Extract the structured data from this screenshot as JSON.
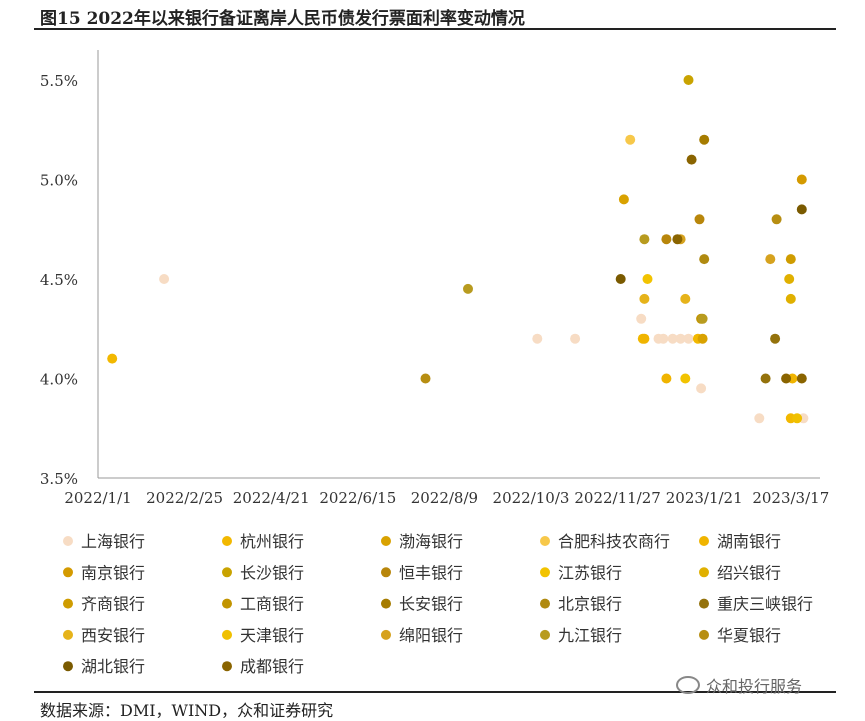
{
  "title": "图15 2022年以来银行备证离岸人民币债发行票面利率变动情况",
  "source": "数据来源：DMI，WIND，众和证券研究",
  "watermark": "众和投行服务",
  "chart_data": {
    "type": "scatter",
    "x_ticks": [
      "2022/1/1",
      "2022/2/25",
      "2022/4/21",
      "2022/6/15",
      "2022/8/9",
      "2022/10/3",
      "2022/11/27",
      "2023/1/21",
      "2023/3/17"
    ],
    "y_ticks": [
      "3.5%",
      "4.0%",
      "4.5%",
      "5.0%",
      "5.5%"
    ],
    "xlim": [
      "2022/1/1",
      "2023/4/10"
    ],
    "ylim": [
      3.5,
      5.6
    ],
    "grid": false,
    "legend_position": "bottom",
    "series": [
      {
        "name": "上海银行",
        "color": "#f7dcc4",
        "points": [
          [
            "2022/2/12",
            4.5
          ],
          [
            "2022/10/7",
            4.2
          ],
          [
            "2022/10/31",
            4.2
          ],
          [
            "2022/12/12",
            4.3
          ],
          [
            "2022/12/23",
            4.2
          ],
          [
            "2022/12/26",
            4.2
          ],
          [
            "2023/1/1",
            4.2
          ],
          [
            "2023/1/6",
            4.2
          ],
          [
            "2023/1/11",
            4.2
          ],
          [
            "2023/1/19",
            3.95
          ],
          [
            "2023/2/25",
            3.8
          ],
          [
            "2023/3/25",
            3.8
          ]
        ]
      },
      {
        "name": "杭州银行",
        "color": "#f2b800",
        "points": [
          [
            "2022/1/10",
            4.1
          ],
          [
            "2022/12/13",
            4.2
          ],
          [
            "2023/1/17",
            4.2
          ],
          [
            "2023/3/17",
            3.8
          ]
        ]
      },
      {
        "name": "渤海银行",
        "color": "#d9a200",
        "points": [
          [
            "2022/12/1",
            4.9
          ],
          [
            "2023/1/20",
            4.2
          ]
        ]
      },
      {
        "name": "合肥科技农商行",
        "color": "#f7c84a",
        "points": [
          [
            "2022/12/5",
            5.2
          ]
        ]
      },
      {
        "name": "湖南银行",
        "color": "#f0b400",
        "points": [
          [
            "2022/12/14",
            4.2
          ],
          [
            "2022/12/28",
            4.0
          ],
          [
            "2023/3/18",
            4.0
          ]
        ]
      },
      {
        "name": "南京银行",
        "color": "#d49a00",
        "points": [
          [
            "2023/3/24",
            5.0
          ]
        ]
      },
      {
        "name": "长沙银行",
        "color": "#c9a300",
        "points": [
          [
            "2023/1/11",
            5.5
          ]
        ]
      },
      {
        "name": "恒丰银行",
        "color": "#b8860b",
        "points": [
          [
            "2022/12/28",
            4.7
          ],
          [
            "2023/1/18",
            4.8
          ]
        ]
      },
      {
        "name": "江苏银行",
        "color": "#f2c300",
        "points": [
          [
            "2022/12/16",
            4.5
          ],
          [
            "2023/1/9",
            4.0
          ]
        ]
      },
      {
        "name": "绍兴银行",
        "color": "#e0b000",
        "points": [
          [
            "2023/3/16",
            4.5
          ],
          [
            "2023/3/17",
            4.4
          ]
        ]
      },
      {
        "name": "齐商银行",
        "color": "#cf9c00",
        "points": [
          [
            "2023/3/17",
            4.6
          ]
        ]
      },
      {
        "name": "工商银行",
        "color": "#c29400",
        "points": [
          [
            "2023/1/19",
            4.3
          ]
        ]
      },
      {
        "name": "长安银行",
        "color": "#a67c00",
        "points": [
          [
            "2023/1/21",
            5.2
          ]
        ]
      },
      {
        "name": "北京银行",
        "color": "#b08a10",
        "points": [
          [
            "2023/1/21",
            4.6
          ]
        ]
      },
      {
        "name": "重庆三峡银行",
        "color": "#94720c",
        "points": [
          [
            "2023/3/1",
            4.0
          ],
          [
            "2023/3/7",
            4.2
          ]
        ]
      },
      {
        "name": "西安银行",
        "color": "#e6b31a",
        "points": [
          [
            "2022/12/14",
            4.4
          ],
          [
            "2023/1/9",
            4.4
          ]
        ]
      },
      {
        "name": "天津银行",
        "color": "#f0c000",
        "points": [
          [
            "2023/3/21",
            3.8
          ]
        ]
      },
      {
        "name": "绵阳银行",
        "color": "#d6a21e",
        "points": [
          [
            "2023/1/6",
            4.7
          ],
          [
            "2023/3/4",
            4.6
          ]
        ]
      },
      {
        "name": "九江银行",
        "color": "#b89b1f",
        "points": [
          [
            "2022/8/24",
            4.45
          ],
          [
            "2022/12/14",
            4.7
          ],
          [
            "2023/1/20",
            4.3
          ]
        ]
      },
      {
        "name": "华夏银行",
        "color": "#b78e12",
        "points": [
          [
            "2022/7/28",
            4.0
          ],
          [
            "2023/3/8",
            4.8
          ]
        ]
      },
      {
        "name": "湖北银行",
        "color": "#7a5a00",
        "points": [
          [
            "2022/11/29",
            4.5
          ],
          [
            "2023/3/24",
            4.85
          ]
        ]
      },
      {
        "name": "成都银行",
        "color": "#8a6400",
        "points": [
          [
            "2023/1/13",
            5.1
          ],
          [
            "2023/1/4",
            4.7
          ],
          [
            "2023/3/14",
            4.0
          ],
          [
            "2023/3/24",
            4.0
          ]
        ]
      }
    ]
  }
}
